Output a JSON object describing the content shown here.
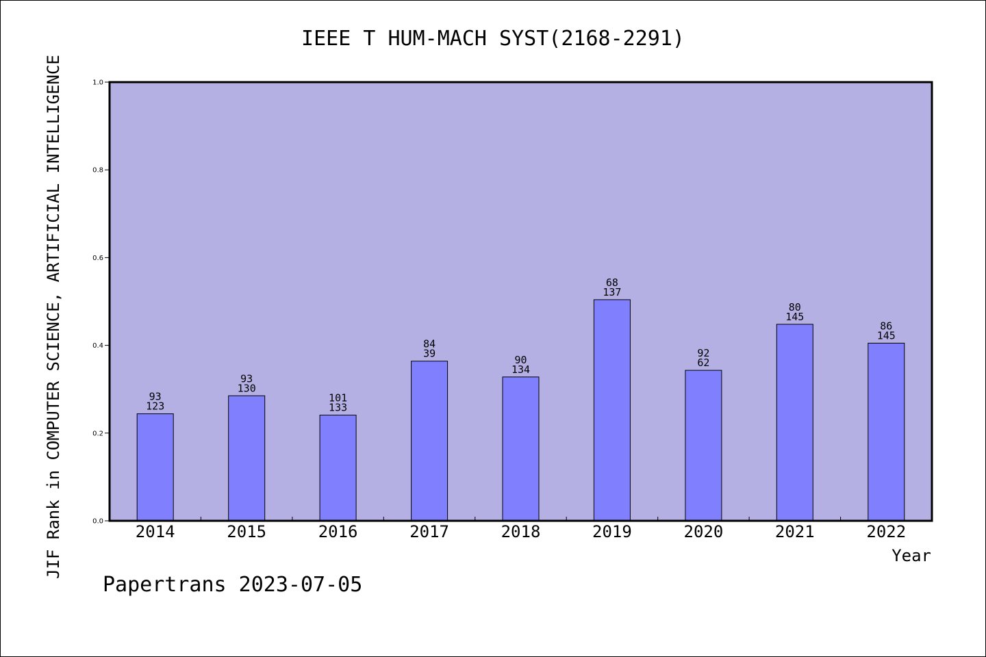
{
  "chart_data": {
    "type": "bar",
    "title": "IEEE T HUM-MACH SYST(2168-2291)",
    "xlabel": "Year",
    "ylabel": "JIF Rank in COMPUTER SCIENCE, ARTIFICIAL INTELLIGENCE",
    "ylim": [
      0,
      1.0
    ],
    "yticks": [
      "0.0",
      "0.2",
      "0.4",
      "0.6",
      "0.8",
      "1.0"
    ],
    "categories": [
      "2014",
      "2015",
      "2016",
      "2017",
      "2018",
      "2019",
      "2020",
      "2021",
      "2022"
    ],
    "values": [
      0.244,
      0.285,
      0.241,
      0.364,
      0.328,
      0.504,
      0.343,
      0.448,
      0.405
    ],
    "labels_top": [
      "93",
      "93",
      "101",
      "84",
      "90",
      "68",
      "92",
      "80",
      "86"
    ],
    "labels_bottom": [
      "123",
      "130",
      "133",
      "39",
      "134",
      "137",
      "62",
      "145",
      "145"
    ],
    "grid": false,
    "colors": {
      "plot_background": "#b5b0e3",
      "bar": "#8080ff",
      "bar_edge": "#000000"
    }
  },
  "footer": {
    "text": "Papertrans 2023-07-05"
  }
}
